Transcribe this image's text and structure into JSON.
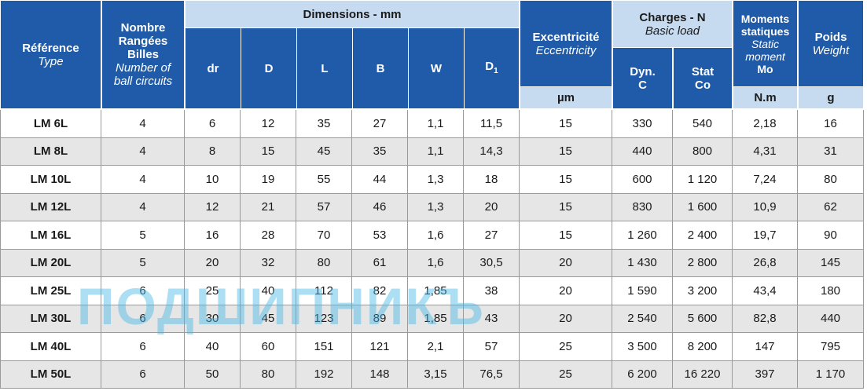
{
  "header": {
    "reference": {
      "fr": "Référence",
      "en": "Type"
    },
    "circuits": {
      "fr": [
        "Nombre",
        "Rangées",
        "Billes"
      ],
      "en": [
        "Number of",
        "ball circuits"
      ]
    },
    "dimensions": "Dimensions - mm",
    "dims": [
      "dr",
      "D",
      "L",
      "B",
      "W"
    ],
    "d1": {
      "base": "D",
      "sub": "1"
    },
    "eccentricity": {
      "fr": "Excentricité",
      "en": "Eccentricity",
      "unit": "µm"
    },
    "charges": {
      "fr": "Charges - N",
      "en": "Basic load",
      "dyn": [
        "Dyn.",
        "C"
      ],
      "stat": [
        "Stat",
        "Co"
      ]
    },
    "moments": {
      "fr": [
        "Moments",
        "statiques"
      ],
      "en": [
        "Static",
        "moment"
      ],
      "sym": "Mo",
      "unit": "N.m"
    },
    "weight": {
      "fr": "Poids",
      "en": "Weight",
      "unit": "g"
    }
  },
  "rows": [
    [
      "LM 6L",
      "4",
      "6",
      "12",
      "35",
      "27",
      "1,1",
      "11,5",
      "15",
      "330",
      "540",
      "2,18",
      "16"
    ],
    [
      "LM 8L",
      "4",
      "8",
      "15",
      "45",
      "35",
      "1,1",
      "14,3",
      "15",
      "440",
      "800",
      "4,31",
      "31"
    ],
    [
      "LM 10L",
      "4",
      "10",
      "19",
      "55",
      "44",
      "1,3",
      "18",
      "15",
      "600",
      "1 120",
      "7,24",
      "80"
    ],
    [
      "LM 12L",
      "4",
      "12",
      "21",
      "57",
      "46",
      "1,3",
      "20",
      "15",
      "830",
      "1 600",
      "10,9",
      "62"
    ],
    [
      "LM 16L",
      "5",
      "16",
      "28",
      "70",
      "53",
      "1,6",
      "27",
      "15",
      "1 260",
      "2 400",
      "19,7",
      "90"
    ],
    [
      "LM 20L",
      "5",
      "20",
      "32",
      "80",
      "61",
      "1,6",
      "30,5",
      "20",
      "1 430",
      "2 800",
      "26,8",
      "145"
    ],
    [
      "LM 25L",
      "6",
      "25",
      "40",
      "112",
      "82",
      "1,85",
      "38",
      "20",
      "1 590",
      "3 200",
      "43,4",
      "180"
    ],
    [
      "LM 30L",
      "6",
      "30",
      "45",
      "123",
      "89",
      "1,85",
      "43",
      "20",
      "2 540",
      "5 600",
      "82,8",
      "440"
    ],
    [
      "LM 40L",
      "6",
      "40",
      "60",
      "151",
      "121",
      "2,1",
      "57",
      "25",
      "3 500",
      "8 200",
      "147",
      "795"
    ],
    [
      "LM 50L",
      "6",
      "50",
      "80",
      "192",
      "148",
      "3,15",
      "76,5",
      "25",
      "6 200",
      "16 220",
      "397",
      "1 170"
    ]
  ],
  "watermark": "ПОДШИПНИКЪ"
}
